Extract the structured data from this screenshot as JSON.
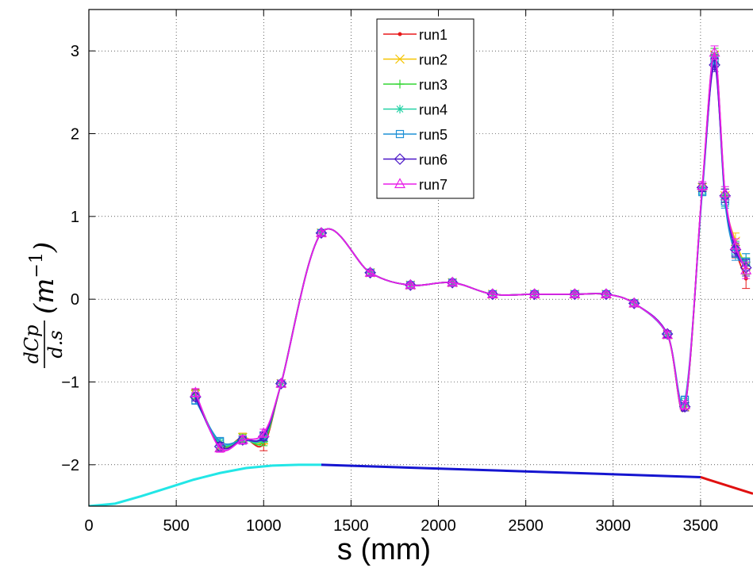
{
  "chart_data": {
    "type": "line",
    "xlabel": "s (mm)",
    "ylabel": {
      "numerator": "dCp",
      "denominator": "d.s",
      "unit_open": "(m",
      "unit_exp": "−1",
      "unit_close": ")"
    },
    "xlim": [
      0,
      3800
    ],
    "ylim": [
      -2.5,
      3.5
    ],
    "x_ticks": [
      0,
      500,
      1000,
      1500,
      2000,
      2500,
      3000,
      3500
    ],
    "x_tick_labels": [
      "0",
      "500",
      "1000",
      "1500",
      "2000",
      "2500",
      "3000",
      "3500"
    ],
    "y_ticks": [
      -2,
      -1,
      0,
      1,
      2,
      3
    ],
    "y_tick_labels": [
      "−2",
      "−1",
      "0",
      "1",
      "2",
      "3"
    ],
    "grid": true,
    "legend_position": "top-center",
    "x": [
      610,
      750,
      880,
      1000,
      1100,
      1330,
      1610,
      1840,
      2080,
      2310,
      2550,
      2780,
      2960,
      3120,
      3310,
      3410,
      3510,
      3580,
      3640,
      3700,
      3760
    ],
    "series": [
      {
        "name": "run1",
        "color": "#e8191b",
        "marker": "dot",
        "values": [
          -1.15,
          -1.78,
          -1.67,
          -1.75,
          -1.02,
          0.8,
          0.32,
          0.17,
          0.2,
          0.06,
          0.06,
          0.06,
          0.06,
          -0.05,
          -0.43,
          -1.3,
          1.35,
          2.95,
          1.25,
          0.6,
          0.25
        ],
        "errors": [
          0.06,
          0.05,
          0.05,
          0.08,
          0.04,
          0.03,
          0.03,
          0.03,
          0.03,
          0.03,
          0.03,
          0.03,
          0.03,
          0.03,
          0.04,
          0.05,
          0.05,
          0.08,
          0.08,
          0.1,
          0.12
        ]
      },
      {
        "name": "run2",
        "color": "#f5c400",
        "marker": "x",
        "values": [
          -1.15,
          -1.78,
          -1.67,
          -1.7,
          -1.02,
          0.8,
          0.32,
          0.17,
          0.2,
          0.06,
          0.06,
          0.06,
          0.06,
          -0.05,
          -0.43,
          -1.3,
          1.35,
          2.95,
          1.25,
          0.7,
          0.4
        ],
        "errors": [
          0.05,
          0.05,
          0.05,
          0.05,
          0.04,
          0.03,
          0.03,
          0.03,
          0.03,
          0.03,
          0.03,
          0.03,
          0.03,
          0.03,
          0.04,
          0.05,
          0.05,
          0.08,
          0.08,
          0.1,
          0.1
        ]
      },
      {
        "name": "run3",
        "color": "#33d633",
        "marker": "plus",
        "values": [
          -1.15,
          -1.76,
          -1.68,
          -1.72,
          -1.02,
          0.8,
          0.32,
          0.17,
          0.2,
          0.06,
          0.06,
          0.06,
          0.06,
          -0.05,
          -0.43,
          -1.28,
          1.35,
          2.95,
          1.25,
          0.65,
          0.4
        ],
        "errors": [
          0.05,
          0.05,
          0.05,
          0.05,
          0.04,
          0.03,
          0.03,
          0.03,
          0.03,
          0.03,
          0.03,
          0.03,
          0.03,
          0.03,
          0.04,
          0.05,
          0.05,
          0.08,
          0.08,
          0.08,
          0.1
        ]
      },
      {
        "name": "run4",
        "color": "#22d1a5",
        "marker": "star",
        "values": [
          -1.18,
          -1.74,
          -1.7,
          -1.68,
          -1.02,
          0.8,
          0.32,
          0.17,
          0.2,
          0.06,
          0.06,
          0.06,
          0.06,
          -0.05,
          -0.43,
          -1.25,
          1.32,
          2.9,
          1.2,
          0.62,
          0.45
        ],
        "errors": [
          0.05,
          0.05,
          0.05,
          0.05,
          0.04,
          0.03,
          0.03,
          0.03,
          0.03,
          0.03,
          0.03,
          0.03,
          0.03,
          0.03,
          0.04,
          0.05,
          0.05,
          0.08,
          0.08,
          0.08,
          0.1
        ]
      },
      {
        "name": "run5",
        "color": "#1e90d6",
        "marker": "square",
        "values": [
          -1.22,
          -1.72,
          -1.7,
          -1.65,
          -1.02,
          0.8,
          0.32,
          0.17,
          0.2,
          0.06,
          0.06,
          0.06,
          0.06,
          -0.05,
          -0.43,
          -1.22,
          1.3,
          2.88,
          1.18,
          0.55,
          0.45
        ],
        "errors": [
          0.05,
          0.05,
          0.05,
          0.05,
          0.04,
          0.03,
          0.03,
          0.03,
          0.03,
          0.03,
          0.03,
          0.03,
          0.03,
          0.03,
          0.04,
          0.05,
          0.05,
          0.08,
          0.08,
          0.08,
          0.1
        ]
      },
      {
        "name": "run6",
        "color": "#4a16c7",
        "marker": "diamond",
        "values": [
          -1.18,
          -1.78,
          -1.7,
          -1.66,
          -1.02,
          0.8,
          0.32,
          0.17,
          0.2,
          0.06,
          0.06,
          0.06,
          0.06,
          -0.05,
          -0.42,
          -1.3,
          1.35,
          2.83,
          1.25,
          0.6,
          0.38
        ],
        "errors": [
          0.05,
          0.05,
          0.05,
          0.05,
          0.04,
          0.03,
          0.03,
          0.03,
          0.03,
          0.03,
          0.03,
          0.03,
          0.03,
          0.03,
          0.04,
          0.05,
          0.05,
          0.08,
          0.08,
          0.08,
          0.1
        ]
      },
      {
        "name": "run7",
        "color": "#e81ee8",
        "marker": "triangle",
        "values": [
          -1.13,
          -1.8,
          -1.7,
          -1.62,
          -1.02,
          0.8,
          0.32,
          0.17,
          0.2,
          0.06,
          0.06,
          0.06,
          0.06,
          -0.05,
          -0.43,
          -1.28,
          1.37,
          2.98,
          1.28,
          0.65,
          0.35
        ],
        "errors": [
          0.05,
          0.05,
          0.05,
          0.05,
          0.04,
          0.03,
          0.03,
          0.03,
          0.03,
          0.03,
          0.03,
          0.03,
          0.03,
          0.03,
          0.04,
          0.05,
          0.05,
          0.08,
          0.08,
          0.08,
          0.1
        ]
      }
    ],
    "baseline_segments": [
      {
        "color": "#22e6e6",
        "x": [
          0,
          150,
          300,
          450,
          600,
          750,
          900,
          1050,
          1200,
          1330
        ],
        "y": [
          -2.5,
          -2.47,
          -2.38,
          -2.28,
          -2.18,
          -2.1,
          -2.04,
          -2.01,
          -2.0,
          -2.0
        ]
      },
      {
        "color": "#1515d0",
        "x": [
          1330,
          3500
        ],
        "y": [
          -2.0,
          -2.15
        ]
      },
      {
        "color": "#e01010",
        "x": [
          3500,
          3800
        ],
        "y": [
          -2.15,
          -2.35
        ]
      }
    ]
  }
}
